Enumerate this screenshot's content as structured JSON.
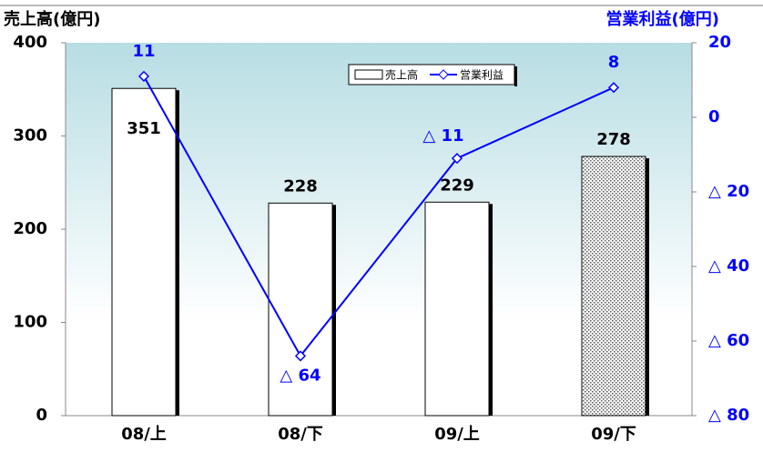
{
  "chart_data": {
    "type": "bar_line",
    "y_label": "売上高(億円)",
    "y2_label": "営業利益(億円)",
    "categories": [
      "08/上",
      "08/下",
      "09/上",
      "09/下"
    ],
    "series": [
      {
        "name": "売上高",
        "type": "bar",
        "color": "#ffffff",
        "colors": [
          "#ffffff",
          "#ffffff",
          "#ffffff",
          "dots"
        ],
        "values": [
          351,
          228,
          229,
          278
        ]
      },
      {
        "name": "営業利益",
        "type": "line",
        "axis": "y2",
        "color": "#0000ff",
        "values": [
          11,
          -64,
          -11,
          8
        ],
        "value_labels": [
          "11",
          "△ 64",
          "△ 11",
          "8"
        ]
      }
    ],
    "ylim": [
      0,
      400
    ],
    "yticks": [
      0,
      100,
      200,
      300,
      400
    ],
    "y2lim": [
      -80,
      20
    ],
    "y2ticks": [
      {
        "value": -80,
        "label": "△ 80"
      },
      {
        "value": -60,
        "label": "△ 60"
      },
      {
        "value": -40,
        "label": "△ 40"
      },
      {
        "value": -20,
        "label": "△ 20"
      },
      0,
      20
    ],
    "legend": "top"
  }
}
